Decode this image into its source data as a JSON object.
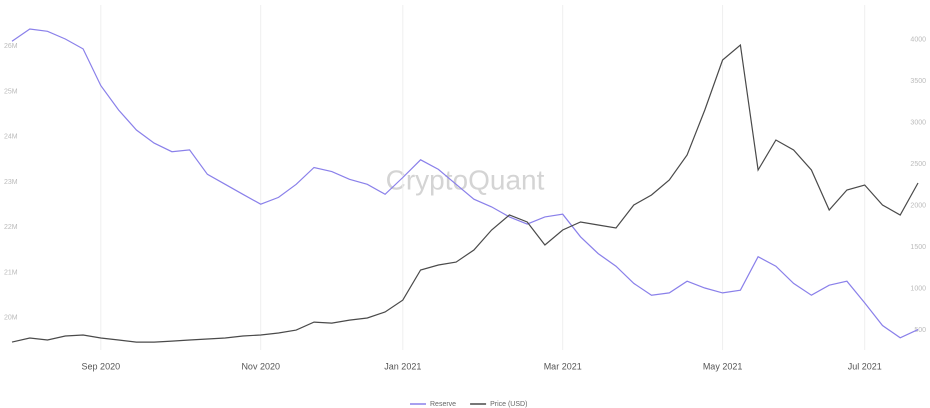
{
  "chart_data": {
    "type": "line",
    "watermark": "CryptoQuant",
    "categories": [
      null,
      null,
      null,
      null,
      null,
      "Sep 2020",
      null,
      null,
      null,
      null,
      null,
      null,
      null,
      null,
      "Nov 2020",
      null,
      null,
      null,
      null,
      null,
      null,
      null,
      "Jan 2021",
      null,
      null,
      null,
      null,
      null,
      null,
      null,
      null,
      "Mar 2021",
      null,
      null,
      null,
      null,
      null,
      null,
      null,
      null,
      "May 2021",
      null,
      null,
      null,
      null,
      null,
      null,
      null,
      "Jul 2021",
      null,
      null,
      null
    ],
    "series": [
      {
        "name": "Reserve",
        "color": "#8a80ea",
        "values": [
          26110000,
          26380000,
          26330000,
          26160000,
          25940000,
          25130000,
          24590000,
          24150000,
          23860000,
          23670000,
          23710000,
          23170000,
          22950000,
          22730000,
          22510000,
          22660000,
          22950000,
          23320000,
          23230000,
          23060000,
          22950000,
          22730000,
          23100000,
          23490000,
          23280000,
          22950000,
          22620000,
          22450000,
          22230000,
          22070000,
          22230000,
          22290000,
          21790000,
          21420000,
          21140000,
          20760000,
          20500000,
          20550000,
          20810000,
          20660000,
          20550000,
          20610000,
          21350000,
          21140000,
          20760000,
          20500000,
          20720000,
          20810000,
          20330000,
          19830000,
          19560000,
          19740000
        ]
      },
      {
        "name": "Price (USD)",
        "color": "#4a4a4a",
        "axis": "y2",
        "values": [
          355,
          404,
          380,
          428,
          440,
          404,
          380,
          355,
          355,
          367,
          380,
          392,
          404,
          428,
          440,
          464,
          500,
          596,
          584,
          620,
          645,
          717,
          861,
          1223,
          1283,
          1319,
          1464,
          1705,
          1886,
          1801,
          1524,
          1705,
          1801,
          1765,
          1729,
          2006,
          2127,
          2307,
          2608,
          3151,
          3753,
          3934,
          2428,
          2789,
          2669,
          2428,
          1946,
          2187,
          2247,
          2006,
          1886,
          2271
        ]
      }
    ],
    "ylim": [
      19400000,
      26800000
    ],
    "yticks": [
      {
        "value": 20000000,
        "label": "20M"
      },
      {
        "value": 21000000,
        "label": "21M"
      },
      {
        "value": 22000000,
        "label": "22M"
      },
      {
        "value": 23000000,
        "label": "23M"
      },
      {
        "value": 24000000,
        "label": "24M"
      },
      {
        "value": 25000000,
        "label": "25M"
      },
      {
        "value": 26000000,
        "label": "26M"
      }
    ],
    "y2lim": [
      320,
      4355
    ],
    "y2ticks": [
      500,
      1000,
      1500,
      2000,
      2500,
      3000,
      3500,
      4000
    ],
    "grid": true
  }
}
